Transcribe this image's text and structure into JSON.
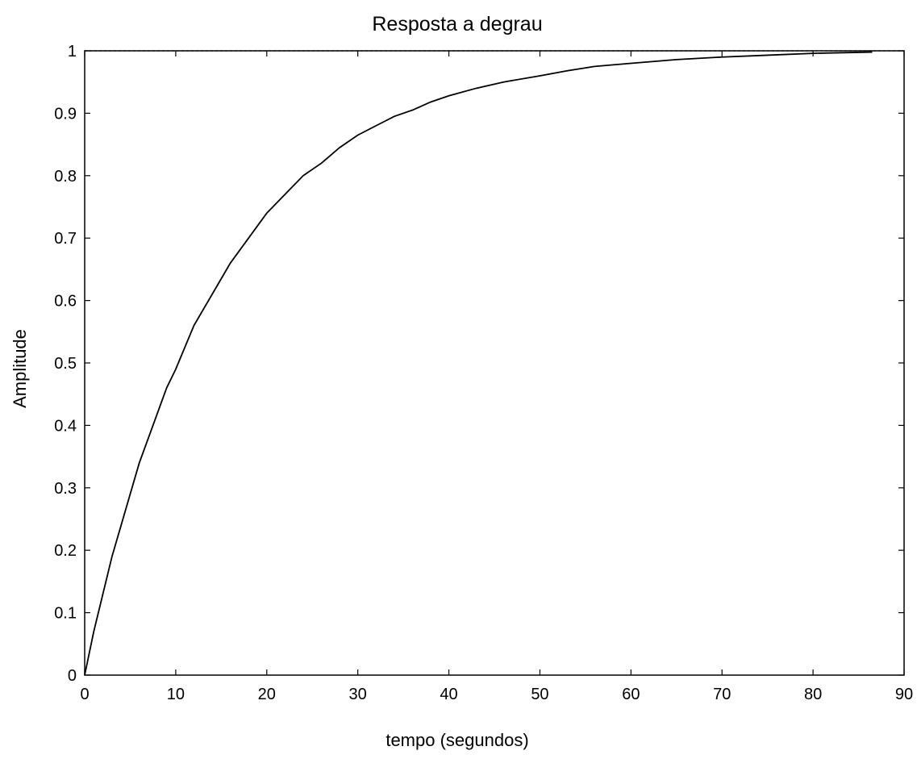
{
  "chart_data": {
    "type": "line",
    "title": "Resposta  a degrau",
    "xlabel": "tempo (segundos)",
    "ylabel": "Amplitude",
    "xlim": [
      0,
      90
    ],
    "ylim": [
      0,
      1
    ],
    "xticks": [
      0,
      10,
      20,
      30,
      40,
      50,
      60,
      70,
      80,
      90
    ],
    "yticks": [
      0,
      0.1,
      0.2,
      0.3,
      0.4,
      0.5,
      0.6,
      0.7,
      0.8,
      0.9,
      1
    ],
    "xtick_labels": [
      "0",
      "10",
      "20",
      "30",
      "40",
      "50",
      "60",
      "70",
      "80",
      "90"
    ],
    "ytick_labels": [
      "0",
      "0.1",
      "0.2",
      "0.3",
      "0.4",
      "0.5",
      "0.6",
      "0.7",
      "0.8",
      "0.9",
      "1"
    ],
    "grid": false,
    "series": [
      {
        "x": [
          0,
          1,
          2,
          3,
          4,
          5,
          6,
          7,
          8,
          9,
          10,
          12,
          14,
          16,
          18,
          20,
          22,
          24,
          26,
          28,
          30,
          32,
          34,
          36,
          38,
          40,
          43,
          46,
          50,
          53,
          56,
          60,
          65,
          70,
          75,
          80,
          86.5
        ],
        "y": [
          0,
          0.07,
          0.13,
          0.19,
          0.24,
          0.29,
          0.34,
          0.38,
          0.42,
          0.46,
          0.49,
          0.56,
          0.61,
          0.66,
          0.7,
          0.74,
          0.77,
          0.8,
          0.82,
          0.845,
          0.865,
          0.88,
          0.895,
          0.905,
          0.918,
          0.928,
          0.94,
          0.95,
          0.96,
          0.968,
          0.975,
          0.98,
          0.986,
          0.99,
          0.993,
          0.996,
          0.998
        ],
        "color": "#000000",
        "style": "solid"
      },
      {
        "x": [
          0,
          90
        ],
        "y": [
          1,
          1
        ],
        "color": "#000000",
        "style": "dashed"
      }
    ]
  }
}
